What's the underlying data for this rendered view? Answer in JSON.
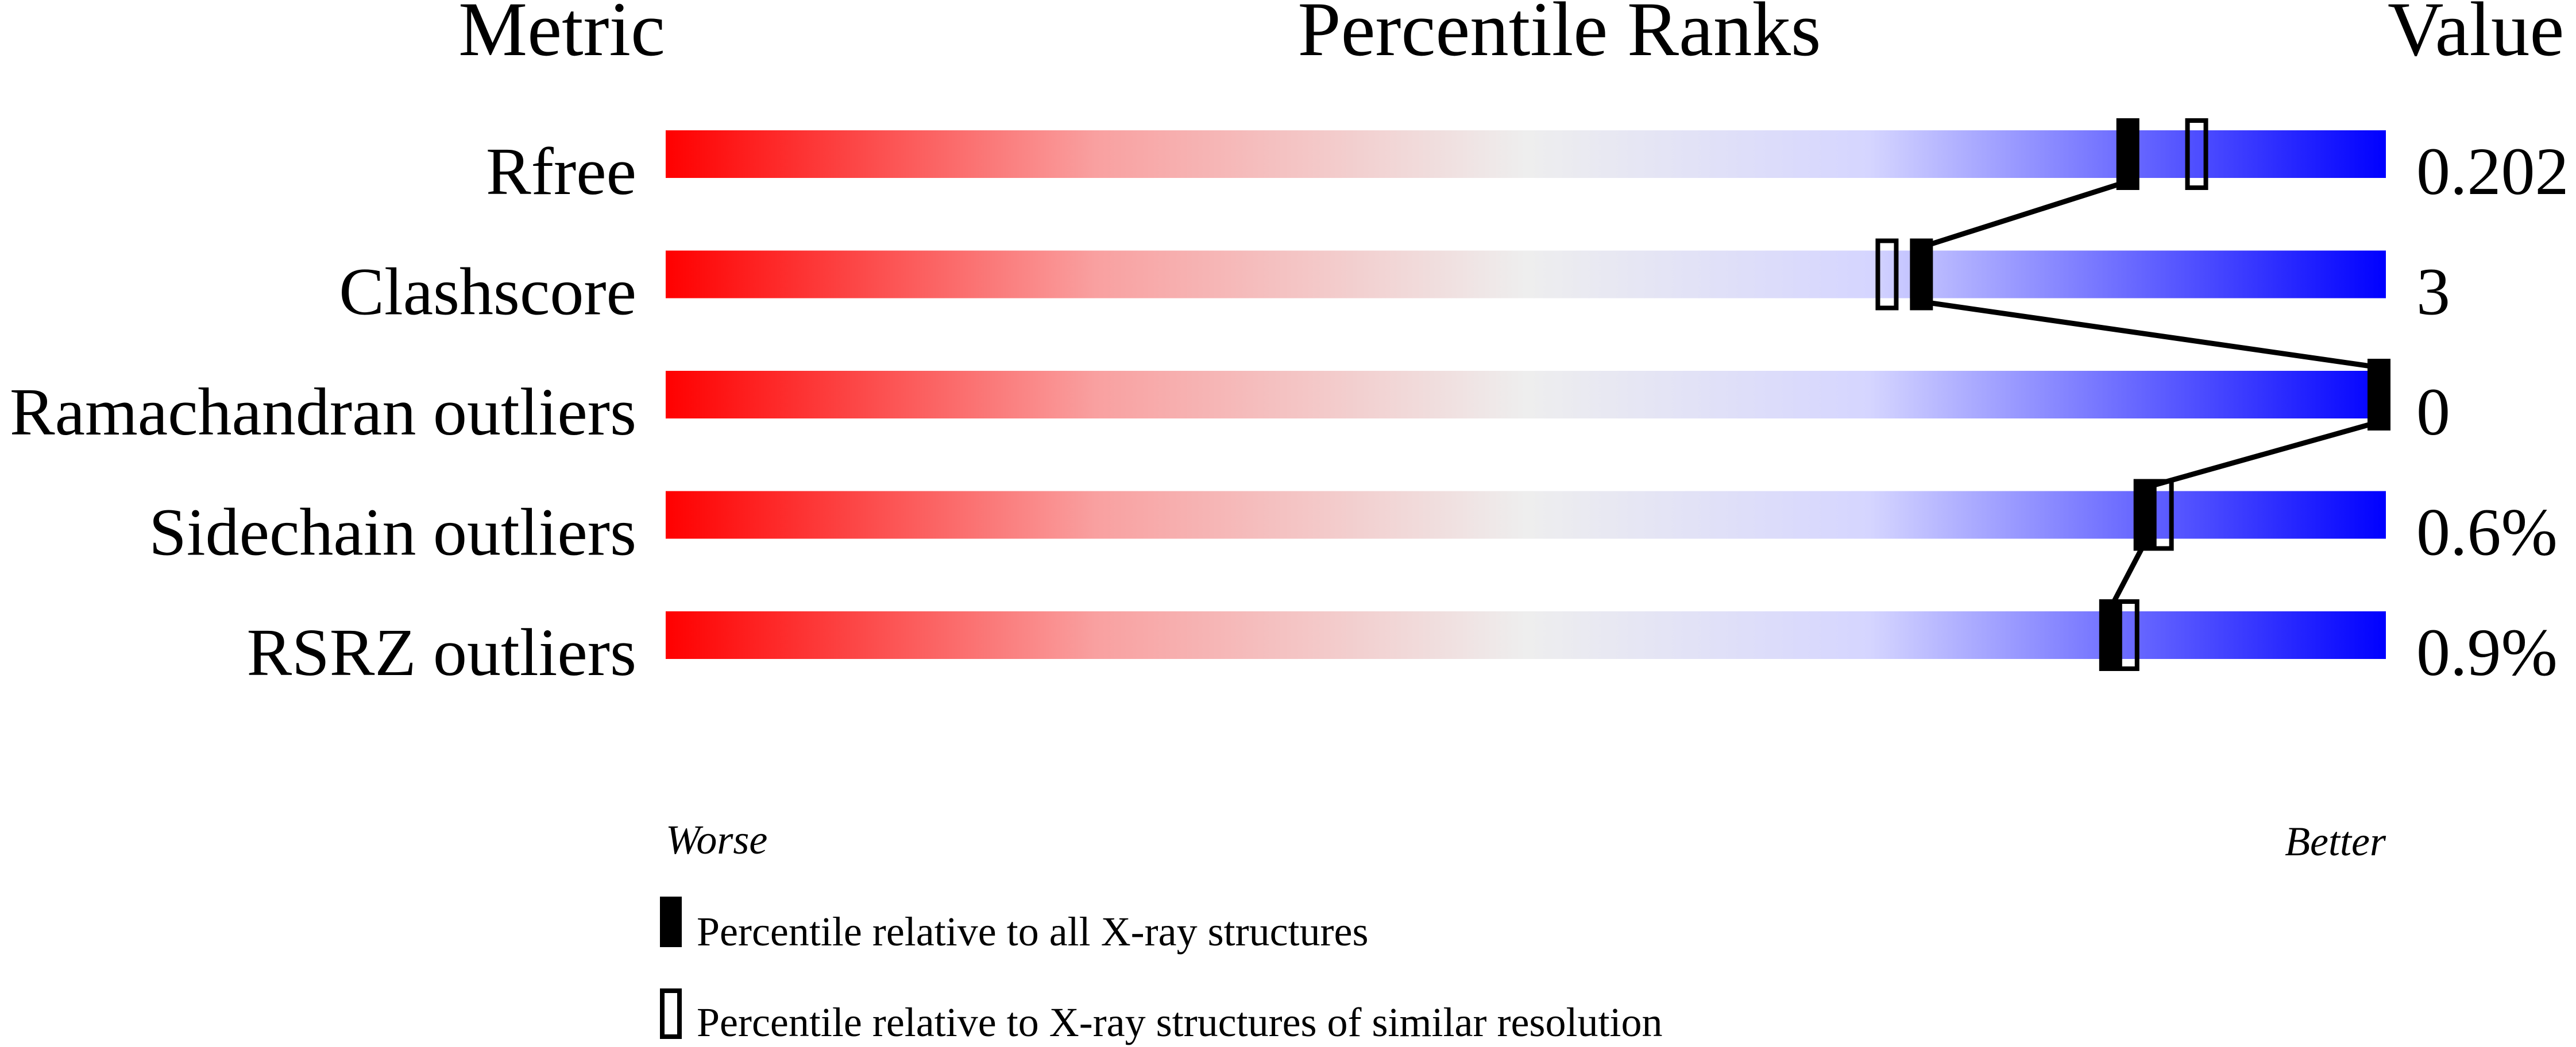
{
  "chart_data": {
    "type": "percentile-slider",
    "headers": {
      "metric": "Metric",
      "ranks": "Percentile Ranks",
      "value": "Value"
    },
    "xlim": [
      0,
      100
    ],
    "worse_label": "Worse",
    "better_label": "Better",
    "gradient_colors": {
      "worse": "#ff0000",
      "middle": "#eeeeee",
      "better": "#0000ff"
    },
    "metrics": [
      {
        "name": "Rfree",
        "value": "0.202",
        "percentile_all": 85,
        "percentile_similar": 89
      },
      {
        "name": "Clashscore",
        "value": "3",
        "percentile_all": 73,
        "percentile_similar": 71
      },
      {
        "name": "Ramachandran outliers",
        "value": "0",
        "percentile_all": 100,
        "percentile_similar": 100
      },
      {
        "name": "Sidechain outliers",
        "value": "0.6%",
        "percentile_all": 86,
        "percentile_similar": 87
      },
      {
        "name": "RSRZ outliers",
        "value": "0.9%",
        "percentile_all": 84,
        "percentile_similar": 85
      }
    ],
    "legend": [
      {
        "marker": "filled",
        "label": "Percentile relative to all X-ray structures"
      },
      {
        "marker": "open",
        "label": "Percentile relative to X-ray structures of similar resolution"
      }
    ]
  }
}
